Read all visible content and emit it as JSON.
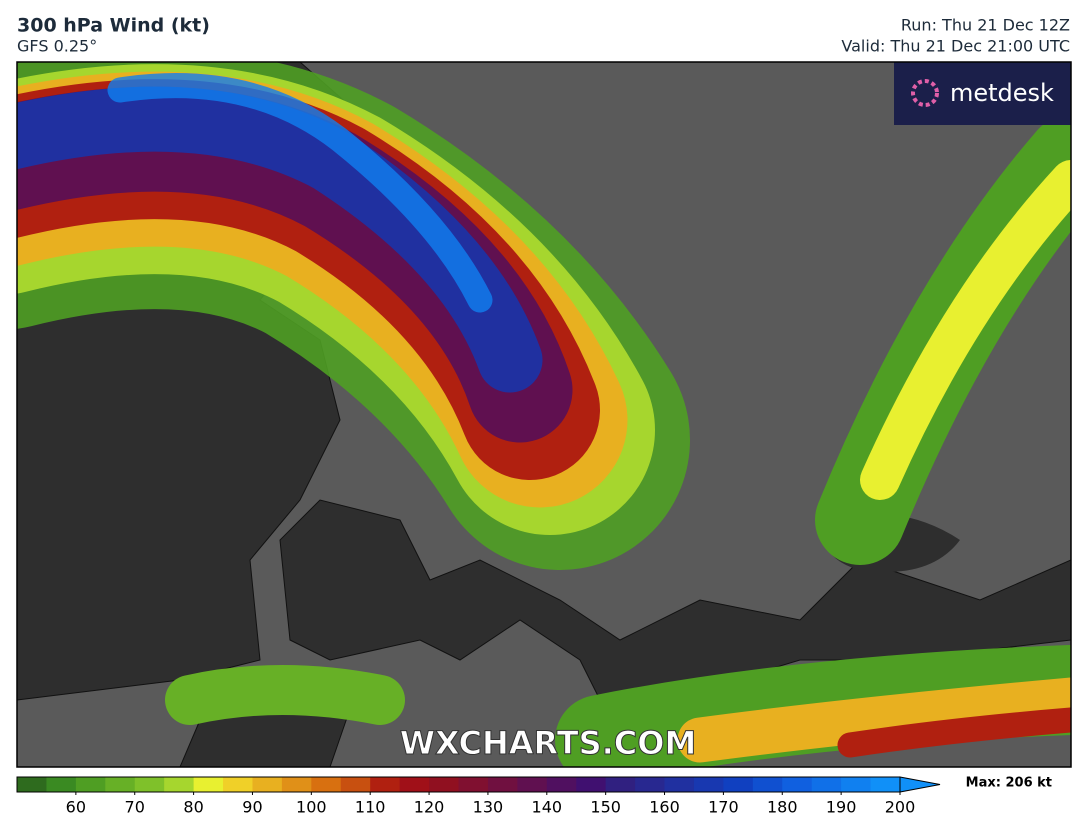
{
  "header": {
    "title": "300 hPa Wind (kt)",
    "subtitle": "GFS 0.25°",
    "run": "Run: Thu 21 Dec 12Z",
    "valid": "Valid: Thu 21 Dec 21:00 UTC"
  },
  "logo": "metdesk",
  "watermark": "WXCHARTS.COM",
  "colorbar": {
    "range": [
      50,
      200
    ],
    "ticks": [
      60,
      70,
      80,
      90,
      100,
      110,
      120,
      130,
      140,
      150,
      160,
      170,
      180,
      190,
      200
    ],
    "colors": [
      "#2e6b1e",
      "#3a8a22",
      "#4f9e23",
      "#67b026",
      "#7fc12a",
      "#a6d62e",
      "#e8f030",
      "#f0d028",
      "#e8b020",
      "#e09018",
      "#d87010",
      "#c85010",
      "#b02010",
      "#a01018",
      "#901020",
      "#801030",
      "#701040",
      "#601050",
      "#501060",
      "#401070",
      "#302080",
      "#282890",
      "#2030a0",
      "#1838b0",
      "#1040c0",
      "#1050d0",
      "#1060e0",
      "#1070e8",
      "#1080f0",
      "#1090f8"
    ],
    "max_label": "Max: 206 kt"
  }
}
